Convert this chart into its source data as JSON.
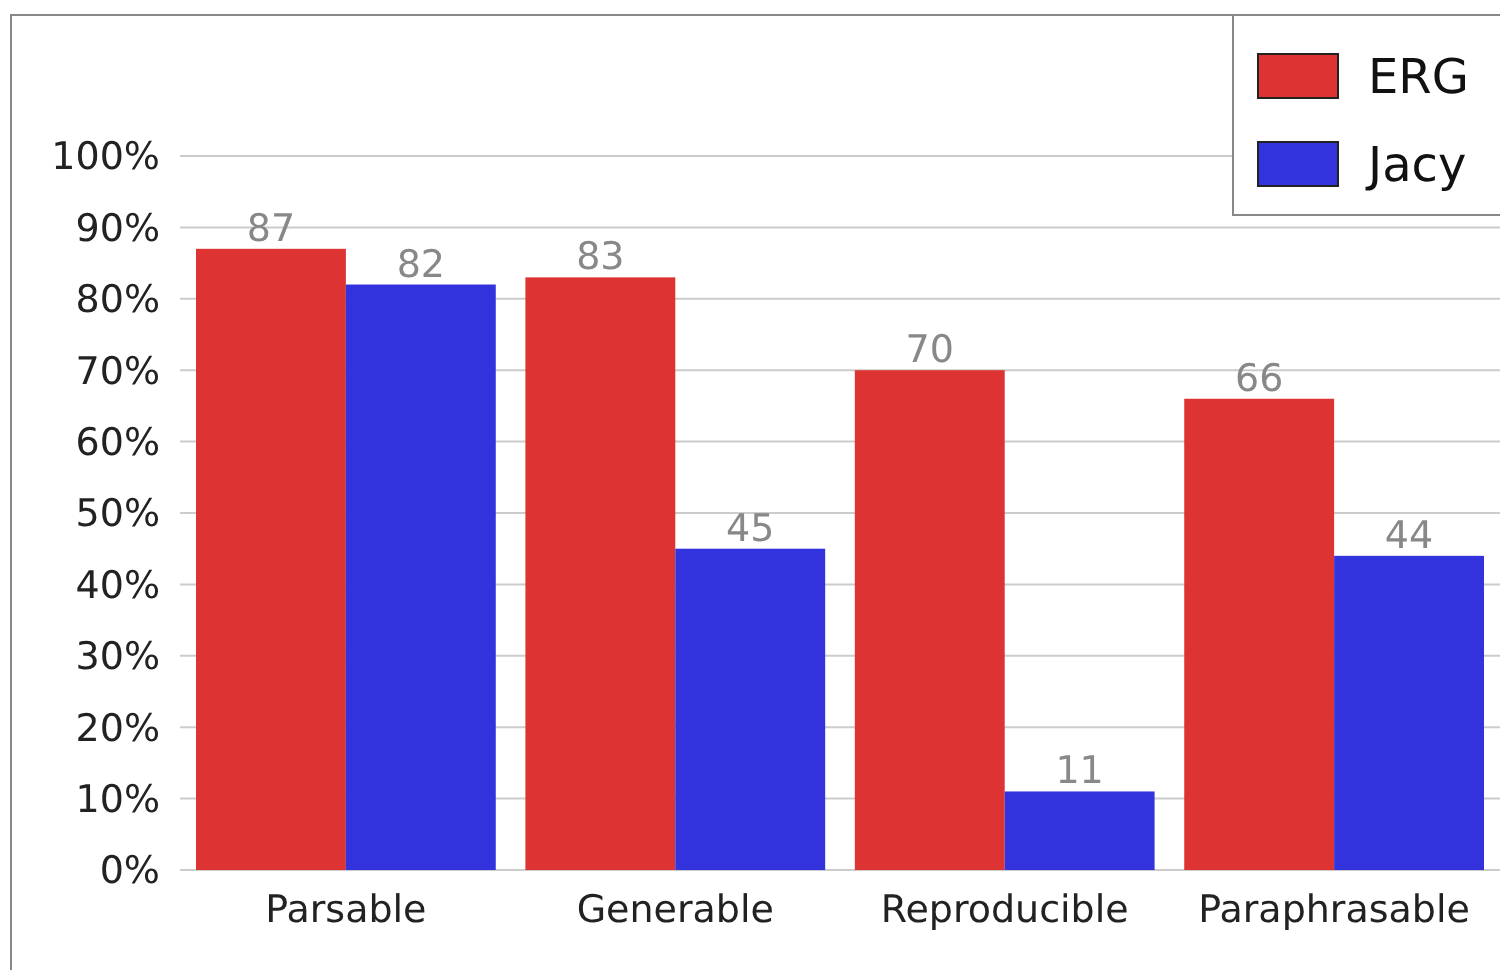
{
  "chart_data": {
    "type": "bar",
    "categories": [
      "Parsable",
      "Generable",
      "Reproducible",
      "Paraphrasable"
    ],
    "series": [
      {
        "name": "ERG",
        "color": "#dd3333",
        "values": [
          87,
          83,
          70,
          66
        ]
      },
      {
        "name": "Jacy",
        "color": "#3333dd",
        "values": [
          82,
          45,
          11,
          44
        ]
      }
    ],
    "ylim": [
      0,
      100
    ],
    "yticks": [
      {
        "value": 0,
        "label": "0%"
      },
      {
        "value": 10,
        "label": "10%"
      },
      {
        "value": 20,
        "label": "20%"
      },
      {
        "value": 30,
        "label": "30%"
      },
      {
        "value": 40,
        "label": "40%"
      },
      {
        "value": 50,
        "label": "50%"
      },
      {
        "value": 60,
        "label": "60%"
      },
      {
        "value": 70,
        "label": "70%"
      },
      {
        "value": 80,
        "label": "80%"
      },
      {
        "value": 90,
        "label": "90%"
      },
      {
        "value": 100,
        "label": "100%"
      }
    ],
    "grid": "y",
    "legend": "top right",
    "data_labels": true
  }
}
